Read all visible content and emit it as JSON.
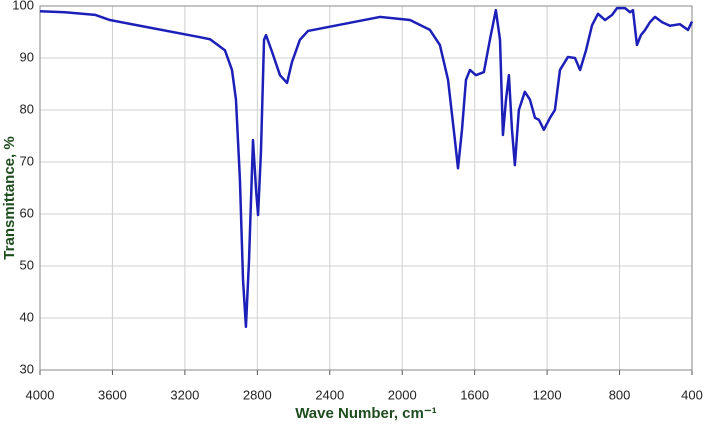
{
  "chart_data": {
    "type": "line",
    "xlabel": "Wave Number, cm⁻¹",
    "ylabel": "Transmittance, %",
    "x": [
      4000,
      3862,
      3696,
      3614,
      3117,
      3061,
      2979,
      2940,
      2918,
      2896,
      2879,
      2863,
      2846,
      2824,
      2807,
      2796,
      2780,
      2763,
      2752,
      2719,
      2675,
      2636,
      2609,
      2565,
      2520,
      2123,
      1957,
      1847,
      1792,
      1747,
      1709,
      1692,
      1670,
      1648,
      1626,
      1593,
      1549,
      1516,
      1483,
      1460,
      1444,
      1427,
      1411,
      1394,
      1378,
      1356,
      1323,
      1295,
      1267,
      1245,
      1218,
      1184,
      1157,
      1129,
      1085,
      1046,
      1018,
      985,
      952,
      919,
      880,
      841,
      814,
      770,
      742,
      726,
      704,
      682,
      659,
      632,
      604,
      566,
      522,
      467,
      422,
      400
    ],
    "values": [
      99,
      98.8,
      98.3,
      97.3,
      94,
      93.6,
      91.5,
      87.7,
      82,
      66.5,
      47.3,
      38.3,
      51,
      74.2,
      64.6,
      59.8,
      72,
      93.5,
      94.4,
      91.2,
      86.7,
      85.2,
      89.2,
      93.5,
      95.2,
      97.9,
      97.3,
      95.4,
      92.5,
      85.8,
      74.2,
      68.8,
      76.2,
      85.8,
      87.7,
      86.7,
      87.3,
      93.5,
      99.2,
      93.5,
      75.2,
      82,
      86.7,
      76.2,
      69.4,
      80,
      83.5,
      82,
      78.5,
      78.1,
      76.2,
      78.5,
      80,
      87.7,
      90.2,
      90,
      87.7,
      91.5,
      96.3,
      98.5,
      97.3,
      98.3,
      99.6,
      99.6,
      98.8,
      99.2,
      92.5,
      94.4,
      95.4,
      96.9,
      97.9,
      96.9,
      96.2,
      96.5,
      95.4,
      97
    ],
    "color": "#1c1fb8",
    "xlim": [
      4000,
      400
    ],
    "ylim": [
      30,
      100
    ],
    "xticks": [
      4000,
      3600,
      3200,
      2800,
      2400,
      2000,
      1600,
      1200,
      800,
      400
    ],
    "yticks": [
      30,
      40,
      50,
      60,
      70,
      80,
      90,
      100
    ],
    "grid": true
  }
}
